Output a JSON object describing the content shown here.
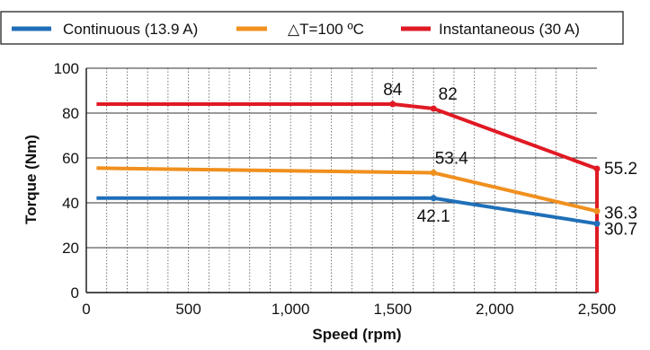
{
  "chart_data": {
    "type": "line",
    "xlabel": "Speed (rpm)",
    "ylabel": "Torque (Nm)",
    "xlim": [
      0,
      2500
    ],
    "ylim": [
      0,
      100
    ],
    "x_ticks": [
      0,
      500,
      1000,
      1500,
      2000,
      2500
    ],
    "x_tick_labels": [
      "0",
      "500",
      "1,000",
      "1,500",
      "2,000",
      "2,500"
    ],
    "y_ticks": [
      0,
      20,
      40,
      60,
      80,
      100
    ],
    "y_tick_labels": [
      "0",
      "20",
      "40",
      "60",
      "80",
      "100"
    ],
    "grid": true,
    "legend_position": "top",
    "series": [
      {
        "name": "Continuous (13.9 A)",
        "color": "#1f6fb8",
        "points": [
          [
            50,
            42.1
          ],
          [
            1700,
            42.1
          ],
          [
            2500,
            30.7
          ]
        ]
      },
      {
        "name": "△T=100 ºC",
        "color": "#f0901e",
        "points": [
          [
            50,
            55.5
          ],
          [
            1700,
            53.4
          ],
          [
            2500,
            36.3
          ]
        ]
      },
      {
        "name": "Instantaneous (30 A)",
        "color": "#e01a24",
        "points": [
          [
            50,
            84
          ],
          [
            1500,
            84
          ],
          [
            1700,
            82
          ],
          [
            2500,
            55.2
          ],
          [
            2500,
            0
          ]
        ]
      }
    ],
    "annotations": [
      {
        "text": "84",
        "x": 1500,
        "y": 84
      },
      {
        "text": "82",
        "x": 1700,
        "y": 82
      },
      {
        "text": "53.4",
        "x": 1700,
        "y": 53.4
      },
      {
        "text": "42.1",
        "x": 1700,
        "y": 42.1
      },
      {
        "text": "55.2",
        "x": 2500,
        "y": 55.2
      },
      {
        "text": "36.3",
        "x": 2500,
        "y": 36.3
      },
      {
        "text": "30.7",
        "x": 2500,
        "y": 30.7
      }
    ]
  }
}
